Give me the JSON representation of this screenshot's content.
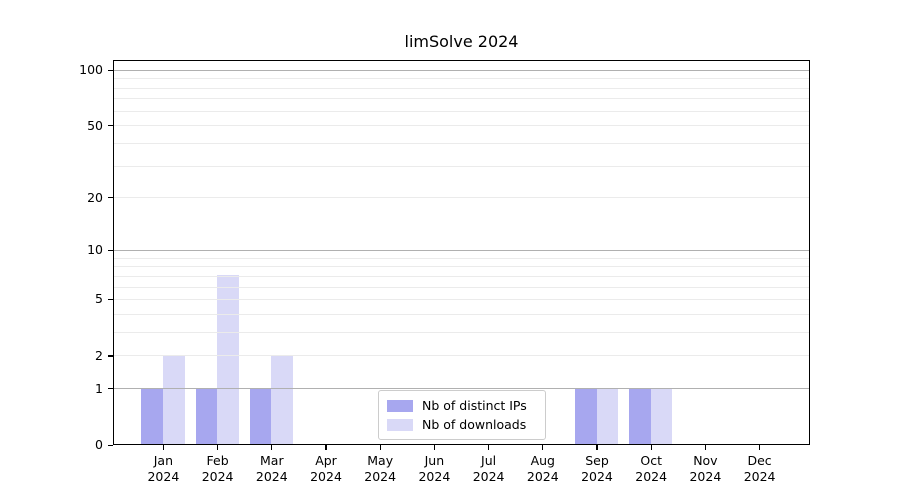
{
  "chart_data": {
    "type": "bar",
    "title": "limSolve 2024",
    "categories": [
      "Jan 2024",
      "Feb 2024",
      "Mar 2024",
      "Apr 2024",
      "May 2024",
      "Jun 2024",
      "Jul 2024",
      "Aug 2024",
      "Sep 2024",
      "Oct 2024",
      "Nov 2024",
      "Dec 2024"
    ],
    "series": [
      {
        "name": "Nb of distinct IPs",
        "color": "#a7a7ef",
        "values": [
          1,
          1,
          1,
          0,
          0,
          0,
          0,
          0,
          1,
          1,
          0,
          0
        ]
      },
      {
        "name": "Nb of downloads",
        "color": "#d9d9f7",
        "values": [
          2,
          7,
          2,
          0,
          0,
          0,
          0,
          0,
          1,
          1,
          0,
          0
        ]
      }
    ],
    "y_ticks": [
      0,
      1,
      2,
      5,
      10,
      20,
      50,
      100
    ],
    "y_major_gridlines": [
      1,
      10,
      100
    ],
    "y_minor_gridlines": [
      2,
      3,
      4,
      5,
      6,
      7,
      8,
      9,
      20,
      30,
      40,
      50,
      60,
      70,
      80,
      90
    ],
    "scale": "log10(1+y)",
    "ylim": [
      0,
      113
    ],
    "xlabel": "",
    "ylabel": "",
    "grid": "horizontal",
    "legend_position": "inside lower center",
    "colors": {
      "major_grid": "#b0b0b0",
      "minor_grid": "#ebebeb",
      "axis": "#000000",
      "legend_border": "#cccccc",
      "background": "#ffffff"
    }
  }
}
